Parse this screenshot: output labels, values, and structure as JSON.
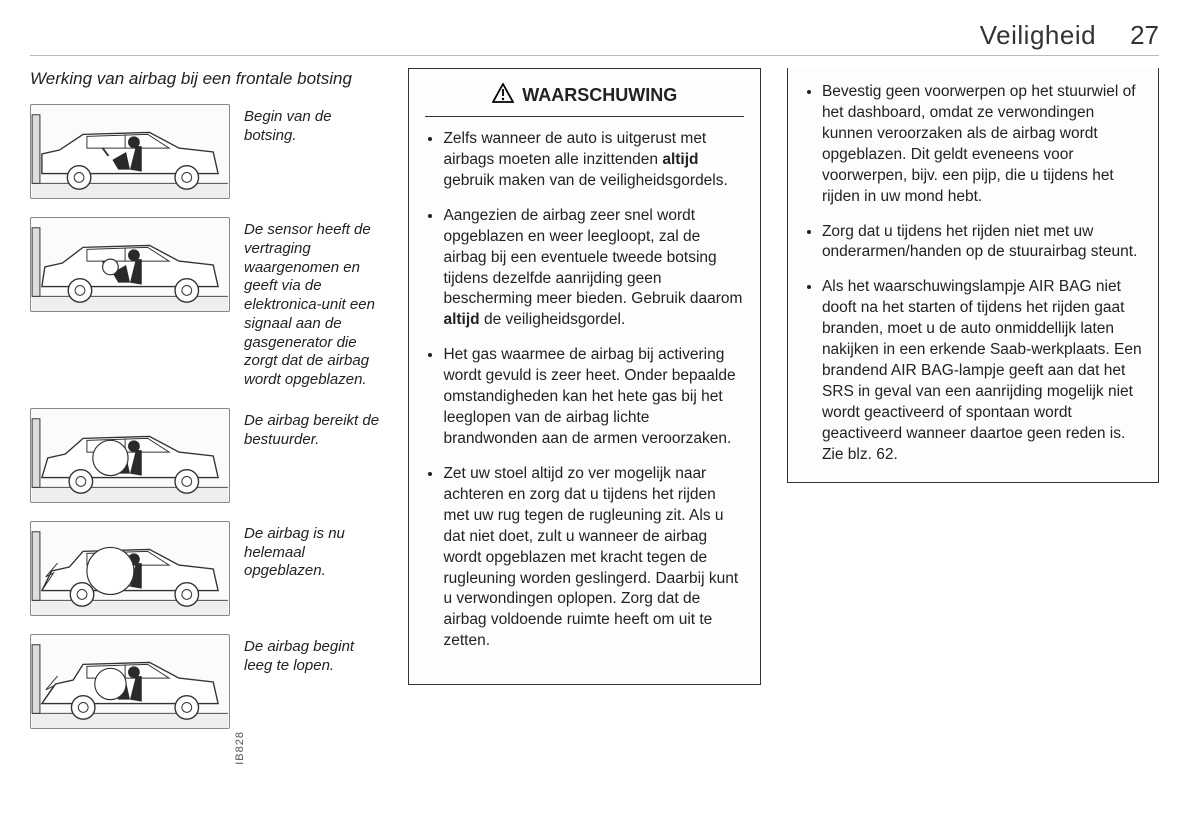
{
  "header": {
    "section": "Veiligheid",
    "page_number": "27"
  },
  "left": {
    "title": "Werking van airbag bij een frontale botsing",
    "image_code": "IB828",
    "steps": [
      {
        "caption": "Begin van de botsing.",
        "airbag_r": 0,
        "crumple": 0
      },
      {
        "caption": "De sensor heeft de vertraging waargenomen en geeft via de elektronica-unit een signaal aan de gasgenerator die zorgt dat de airbag wordt opgeblazen.",
        "airbag_r": 8,
        "crumple": 3
      },
      {
        "caption": "De airbag bereikt de bestuurder.",
        "airbag_r": 18,
        "crumple": 6
      },
      {
        "caption": "De airbag is nu helemaal opgeblazen.",
        "airbag_r": 24,
        "crumple": 10
      },
      {
        "caption": "De airbag begint leeg te lopen.",
        "airbag_r": 16,
        "crumple": 14
      }
    ]
  },
  "warning": {
    "title": "WAARSCHUWING",
    "items_html": [
      "Zelfs wanneer de auto is uitgerust met airbags moeten alle inzittenden <b>altijd</b> gebruik maken van de veiligheidsgordels.",
      "Aangezien de airbag zeer snel wordt opgeblazen en weer leegloopt, zal de airbag bij een eventuele tweede botsing tijdens dezelfde aanrijding geen bescherming meer bieden. Gebruik daarom <b>altijd</b> de veiligheidsgordel.",
      "Het gas waarmee de airbag bij activering wordt gevuld is zeer heet. Onder bepaalde omstandigheden kan het hete gas bij het leeglopen van de airbag lichte brandwonden aan de armen veroorzaken.",
      "Zet uw stoel altijd zo ver mogelijk naar achteren en zorg dat u tijdens het rijden met uw rug tegen de rugleuning zit. Als u dat niet doet, zult u wanneer de airbag wordt opgeblazen met kracht tegen de rugleuning worden geslingerd. Daarbij kunt u verwondingen oplopen. Zorg dat de airbag voldoende ruimte heeft om uit te zetten."
    ]
  },
  "right": {
    "items_html": [
      "Bevestig geen voorwerpen op het stuurwiel of het dashboard, omdat ze verwondingen kunnen veroorzaken als de airbag wordt opgeblazen. Dit geldt eveneens voor voorwerpen, bijv. een pijp, die u tijdens het rijden in uw mond hebt.",
      "Zorg dat u tijdens het rijden niet met uw onderarmen/handen op de stuurairbag steunt.",
      "Als het waarschuwingslampje AIR BAG niet dooft na het starten of tijdens het rijden gaat branden, moet u de auto onmiddellijk laten nakijken in een erkende Saab-werkplaats. Een brandend AIR BAG-lampje geeft aan dat het SRS in geval van een aanrijding mogelijk niet wordt geactiveerd of spontaan wordt geactiveerd wanneer daartoe geen reden is. Zie blz. 62."
    ]
  },
  "style": {
    "stroke": "#333333",
    "person_fill": "#2a2a2a",
    "airbag_fill": "#ffffff",
    "ground_fill": "#eeeeee"
  }
}
